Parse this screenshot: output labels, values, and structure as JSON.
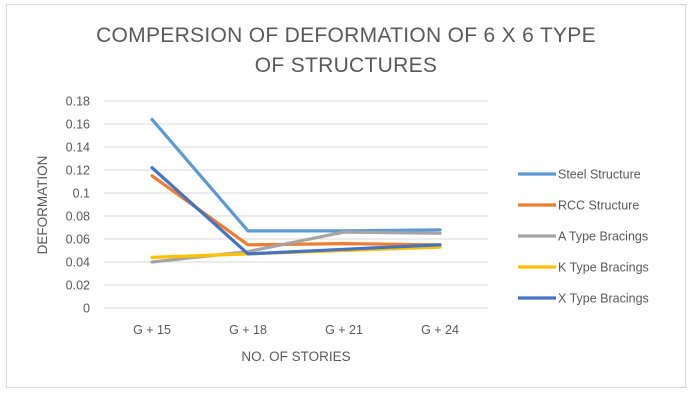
{
  "chart_data": {
    "type": "line",
    "title_lines": [
      "COMPERSION OF DEFORMATION OF 6 X 6 TYPE",
      "OF STRUCTURES"
    ],
    "xlabel": "NO. OF STORIES",
    "ylabel": "DEFORMATION",
    "categories": [
      "G + 15",
      "G + 18",
      "G + 21",
      "G + 24"
    ],
    "ylim": [
      0,
      0.18
    ],
    "yticks": [
      0,
      0.02,
      0.04,
      0.06,
      0.08,
      0.1,
      0.12,
      0.14,
      0.16,
      0.18
    ],
    "ytick_labels": [
      "0",
      "0.02",
      "0.04",
      "0.06",
      "0.08",
      "0.1",
      "0.12",
      "0.14",
      "0.16",
      "0.18"
    ],
    "grid": true,
    "legend_position": "right",
    "series": [
      {
        "name": "Steel Structure",
        "color": "#5b9bd5",
        "values": [
          0.164,
          0.067,
          0.067,
          0.068
        ]
      },
      {
        "name": "RCC Structure",
        "color": "#ed7d31",
        "values": [
          0.115,
          0.055,
          0.056,
          0.055
        ]
      },
      {
        "name": "A Type Bracings",
        "color": "#a5a5a5",
        "values": [
          0.04,
          0.049,
          0.066,
          0.065
        ]
      },
      {
        "name": "K Type Bracings",
        "color": "#ffc000",
        "values": [
          0.044,
          0.047,
          0.05,
          0.053
        ]
      },
      {
        "name": "X Type Bracings",
        "color": "#4472c4",
        "values": [
          0.122,
          0.047,
          0.051,
          0.055
        ]
      }
    ]
  }
}
